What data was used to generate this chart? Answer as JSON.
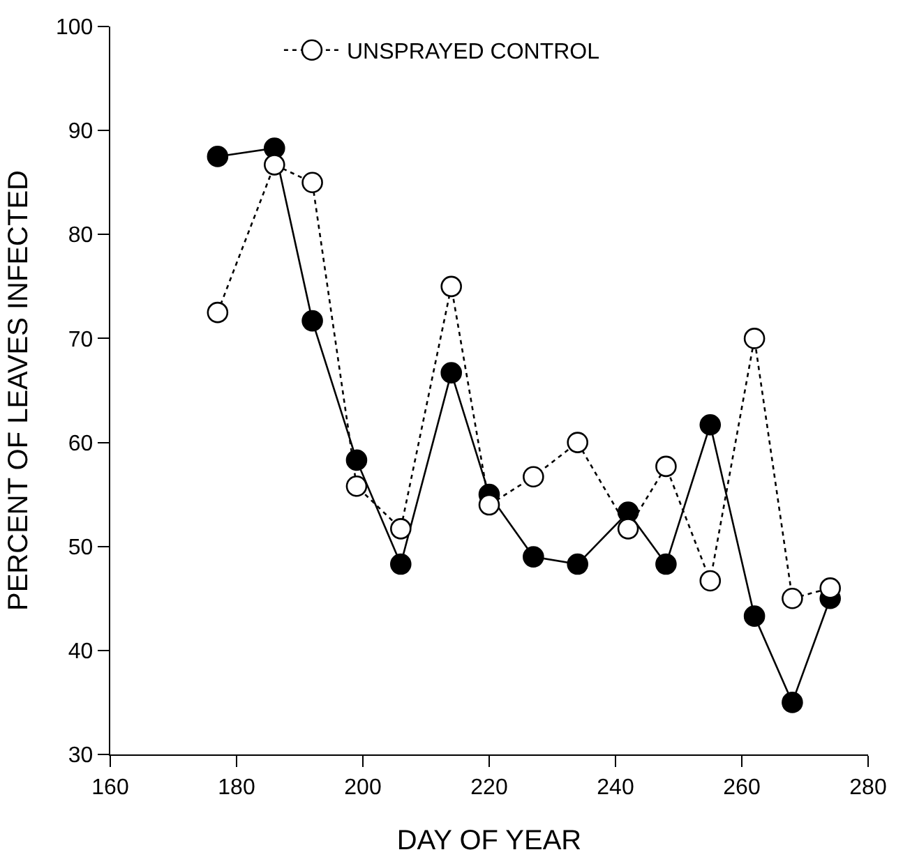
{
  "chart_data": {
    "type": "line",
    "xlabel": "DAY OF YEAR",
    "ylabel": "PERCENT OF LEAVES INFECTED",
    "x": [
      177,
      186,
      192,
      199,
      206,
      214,
      220,
      227,
      234,
      242,
      248,
      255,
      262,
      268,
      274
    ],
    "series": [
      {
        "color": "#000000",
        "line_style": "solid",
        "values": [
          87.5,
          88.3,
          71.7,
          58.3,
          48.3,
          66.7,
          55,
          49,
          48.3,
          53.3,
          48.3,
          61.7,
          43.3,
          35,
          45
        ]
      },
      {
        "name": "UNSPRAYED CONTROL",
        "color": "#000000",
        "line_style": "dotted",
        "values": [
          72.5,
          86.7,
          85,
          55.8,
          51.7,
          75,
          54,
          56.7,
          60,
          51.7,
          57.7,
          46.7,
          70,
          45,
          46
        ]
      }
    ],
    "xlim": [
      160,
      280
    ],
    "xticks": [
      160,
      180,
      200,
      220,
      240,
      260,
      280
    ],
    "ylim": [
      30,
      100
    ],
    "yticks": [
      30,
      40,
      50,
      60,
      70,
      80,
      90,
      100
    ],
    "marker": "circle",
    "legend": "top"
  }
}
